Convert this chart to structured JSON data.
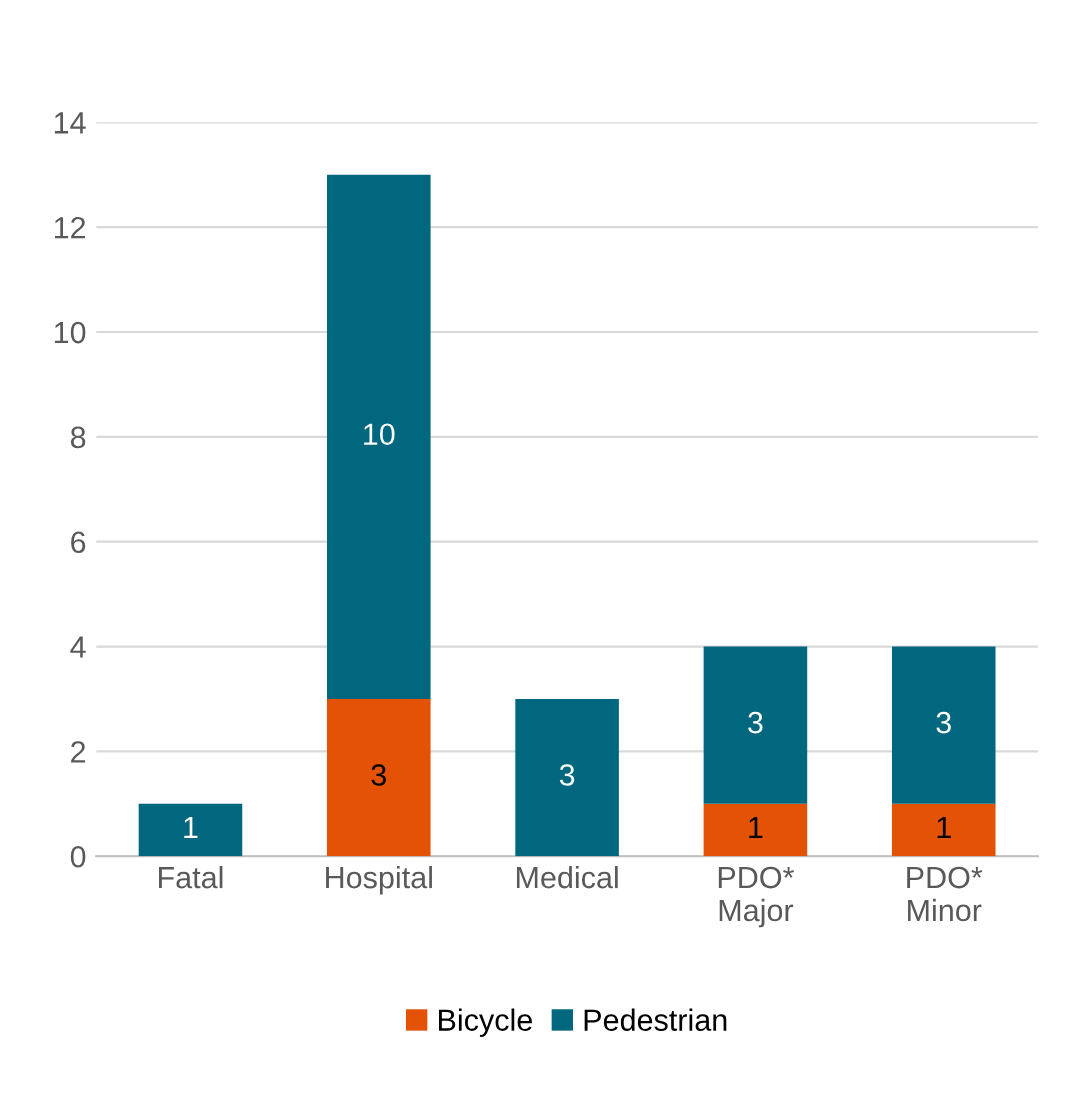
{
  "chart_data": {
    "type": "bar",
    "stacked": true,
    "categories": [
      "Fatal",
      "Hospital",
      "Medical",
      "PDO*\nMajor",
      "PDO*\nMinor"
    ],
    "series": [
      {
        "name": "Bicycle",
        "color": "#e35205",
        "values": [
          0,
          3,
          0,
          1,
          1
        ],
        "value_labels": [
          null,
          "3",
          null,
          "1",
          "1"
        ]
      },
      {
        "name": "Pedestrian",
        "color": "#00677f",
        "values": [
          1,
          10,
          3,
          3,
          3
        ],
        "value_labels": [
          "1",
          "10",
          "3",
          "3",
          "3"
        ]
      }
    ],
    "ylim": [
      0,
      14
    ],
    "yticks": [
      0,
      2,
      4,
      6,
      8,
      10,
      12,
      14
    ],
    "grid": "y",
    "legend": "bottom"
  }
}
